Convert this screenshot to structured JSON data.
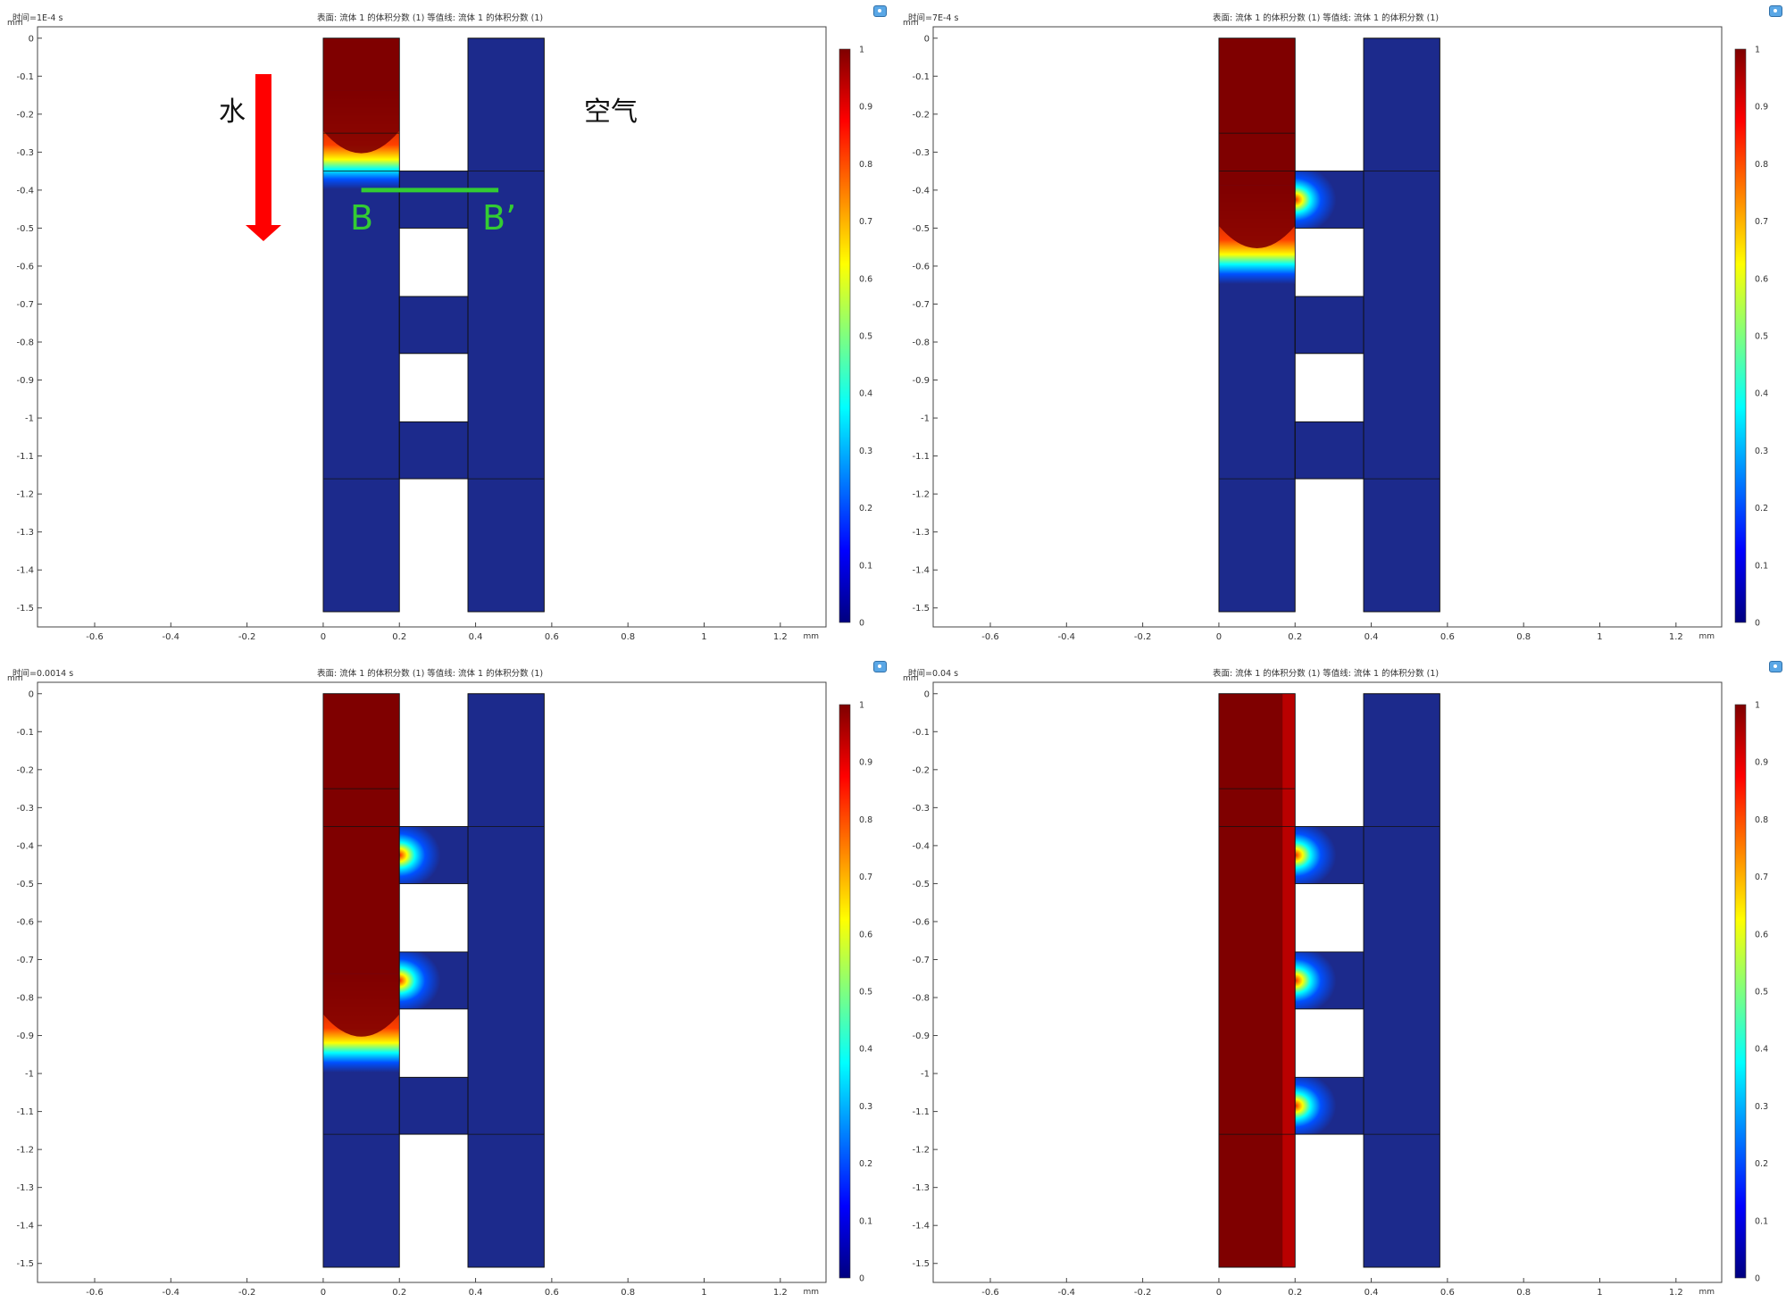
{
  "colors": {
    "jet": [
      "#00007f",
      "#0000ff",
      "#007fff",
      "#00ffff",
      "#7fff7f",
      "#ffff00",
      "#ff7f00",
      "#ff0000",
      "#7f0000"
    ],
    "domain_blue": "#1c2a8c",
    "domain_red": "#7f0000",
    "arrow_red": "#ff0000",
    "annotation_green": "#33cc33"
  },
  "annotations": {
    "water": "水",
    "air": "空气",
    "line_start": "B",
    "line_end": "B’"
  },
  "panels": [
    {
      "time_label": "时间=1E-4 s",
      "expression": "表面: 流体 1 的体积分数 (1)  等值线: 流体 1 的体积分数 (1)",
      "front_depth": 0.35,
      "bubbles": [],
      "colorbar_ticks": [
        "1",
        "0.9",
        "0.8",
        "0.7",
        "0.6",
        "0.5",
        "0.4",
        "0.3",
        "0.2",
        "0.1",
        "0"
      ]
    },
    {
      "time_label": "时间=7E-4 s",
      "expression": "表面: 流体 1 的体积分数 (1)  等值线: 流体 1 的体积分数 (1)",
      "front_depth": 0.6,
      "bubbles": [
        0
      ],
      "colorbar_ticks": [
        "1",
        "0.9",
        "0.8",
        "0.7",
        "0.6",
        "0.5",
        "0.4",
        "0.3",
        "0.2",
        "0.1",
        "0"
      ]
    },
    {
      "time_label": "时间=0.0014 s",
      "expression": "表面: 流体 1 的体积分数 (1)  等值线: 流体 1 的体积分数 (1)",
      "front_depth": 0.95,
      "bubbles": [
        0,
        1
      ],
      "colorbar_ticks": [
        "1",
        "0.9",
        "0.8",
        "0.7",
        "0.6",
        "0.5",
        "0.4",
        "0.3",
        "0.2",
        "0.1",
        "0"
      ]
    },
    {
      "time_label": "时间=0.04 s",
      "expression": "表面: 流体 1 的体积分数 (1)  等值线: 流体 1 的体积分数 (1)",
      "front_depth": 1.6,
      "bubbles": [
        0,
        1,
        2
      ],
      "colorbar_ticks": [
        "1",
        "0.9",
        "0.8",
        "0.7",
        "0.6",
        "0.5",
        "0.4",
        "0.3",
        "0.2",
        "0.1",
        "0"
      ]
    }
  ],
  "chart_data": {
    "type": "heatmap",
    "quantity": "流体 1 的体积分数 (1)",
    "x_unit": "mm",
    "y_unit": "mm",
    "xlim": [
      -0.75,
      1.32
    ],
    "ylim": [
      -1.55,
      0.03
    ],
    "x_ticks": [
      -0.6,
      -0.4,
      -0.2,
      0,
      0.2,
      0.4,
      0.6,
      0.8,
      1,
      1.2
    ],
    "x_tick_labels": [
      "-0.6",
      "-0.4",
      "-0.2",
      "0",
      "0.2",
      "0.4",
      "0.6",
      "0.8",
      "1",
      "1.2"
    ],
    "y_ticks": [
      0,
      -0.1,
      -0.2,
      -0.3,
      -0.4,
      -0.5,
      -0.6,
      -0.7,
      -0.8,
      -0.9,
      -1,
      -1.1,
      -1.2,
      -1.3,
      -1.4,
      -1.5
    ],
    "y_tick_labels": [
      "0",
      "-0.1",
      "-0.2",
      "-0.3",
      "-0.4",
      "-0.5",
      "-0.6",
      "-0.7",
      "-0.8",
      "-0.9",
      "-1",
      "-1.1",
      "-1.2",
      "-1.3",
      "-1.4",
      "-1.5"
    ],
    "colorbar_range": [
      0,
      1
    ],
    "geometry": {
      "left_channel": {
        "x": [
          0,
          0.2
        ],
        "y": [
          -1.51,
          0
        ]
      },
      "right_channel": {
        "x": [
          0.38,
          0.58
        ],
        "y": [
          -1.51,
          0
        ]
      },
      "bridges": [
        {
          "x": [
            0.2,
            0.38
          ],
          "y": [
            -0.5,
            -0.35
          ]
        },
        {
          "x": [
            0.2,
            0.38
          ],
          "y": [
            -0.83,
            -0.68
          ]
        },
        {
          "x": [
            0.2,
            0.38
          ],
          "y": [
            -1.16,
            -1.01
          ]
        }
      ],
      "horizontal_lines": [
        -0.25,
        -0.35,
        -1.16
      ]
    },
    "cut_line_BB": {
      "x": [
        0.1,
        0.46
      ],
      "y": -0.4
    }
  }
}
